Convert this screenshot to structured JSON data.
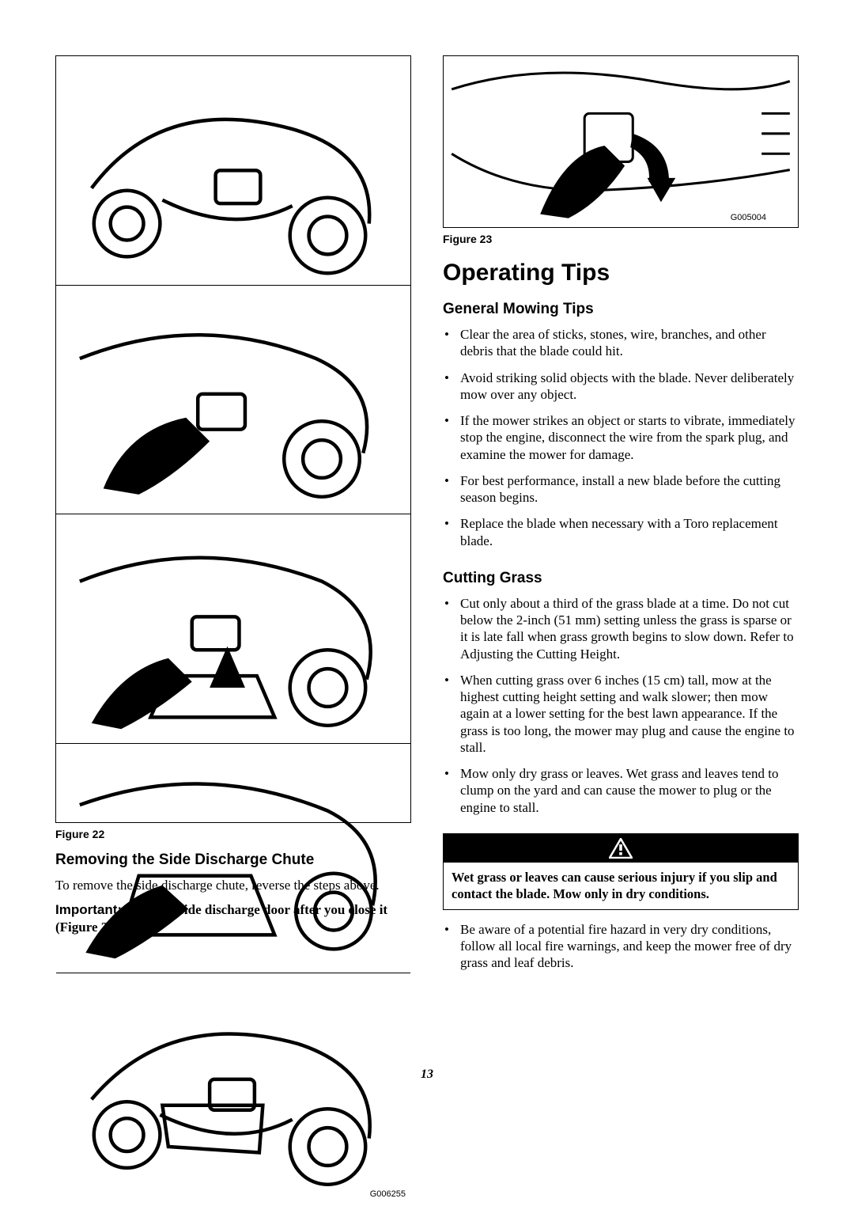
{
  "left": {
    "figure_caption": "Figure 22",
    "image_code": "G006255",
    "heading": "Removing the Side Discharge Chute",
    "body": "To remove the side discharge chute, reverse the steps above.",
    "important_label": "Important:",
    "important_text": "Lock the side discharge door after you close it (Figure 23)."
  },
  "right": {
    "figure_caption": "Figure 23",
    "image_code": "G005004",
    "section_title": "Operating Tips",
    "general_heading": "General Mowing Tips",
    "general_tips": [
      "Clear the area of sticks, stones, wire, branches, and other debris that the blade could hit.",
      "Avoid striking solid objects with the blade. Never deliberately mow over any object.",
      "If the mower strikes an object or starts to vibrate, immediately stop the engine, disconnect the wire from the spark plug, and examine the mower for damage.",
      "For best performance, install a new blade before the cutting season begins.",
      "Replace the blade when necessary with a Toro replacement blade."
    ],
    "cutting_heading": "Cutting Grass",
    "cutting_tips_before": [
      "Cut only about a third of the grass blade at a time. Do not cut below the 2-inch (51 mm) setting unless the grass is sparse or it is late fall when grass growth begins to slow down. Refer to Adjusting the Cutting Height.",
      "When cutting grass over 6 inches (15 cm) tall, mow at the highest cutting height setting and walk slower; then mow again at a lower setting for the best lawn appearance. If the grass is too long, the mower may plug and cause the engine to stall.",
      "Mow only dry grass or leaves. Wet grass and leaves tend to clump on the yard and can cause the mower to plug or the engine to stall."
    ],
    "warning_text": "Wet grass or leaves can cause serious injury if you slip and contact the blade. Mow only in dry conditions.",
    "cutting_tips_after": [
      "Be aware of a potential fire hazard in very dry conditions, follow all local fire warnings, and keep the mower free of dry grass and leaf debris."
    ]
  },
  "page_number": "13",
  "colors": {
    "text": "#000000",
    "background": "#ffffff",
    "warning_bg": "#000000"
  }
}
